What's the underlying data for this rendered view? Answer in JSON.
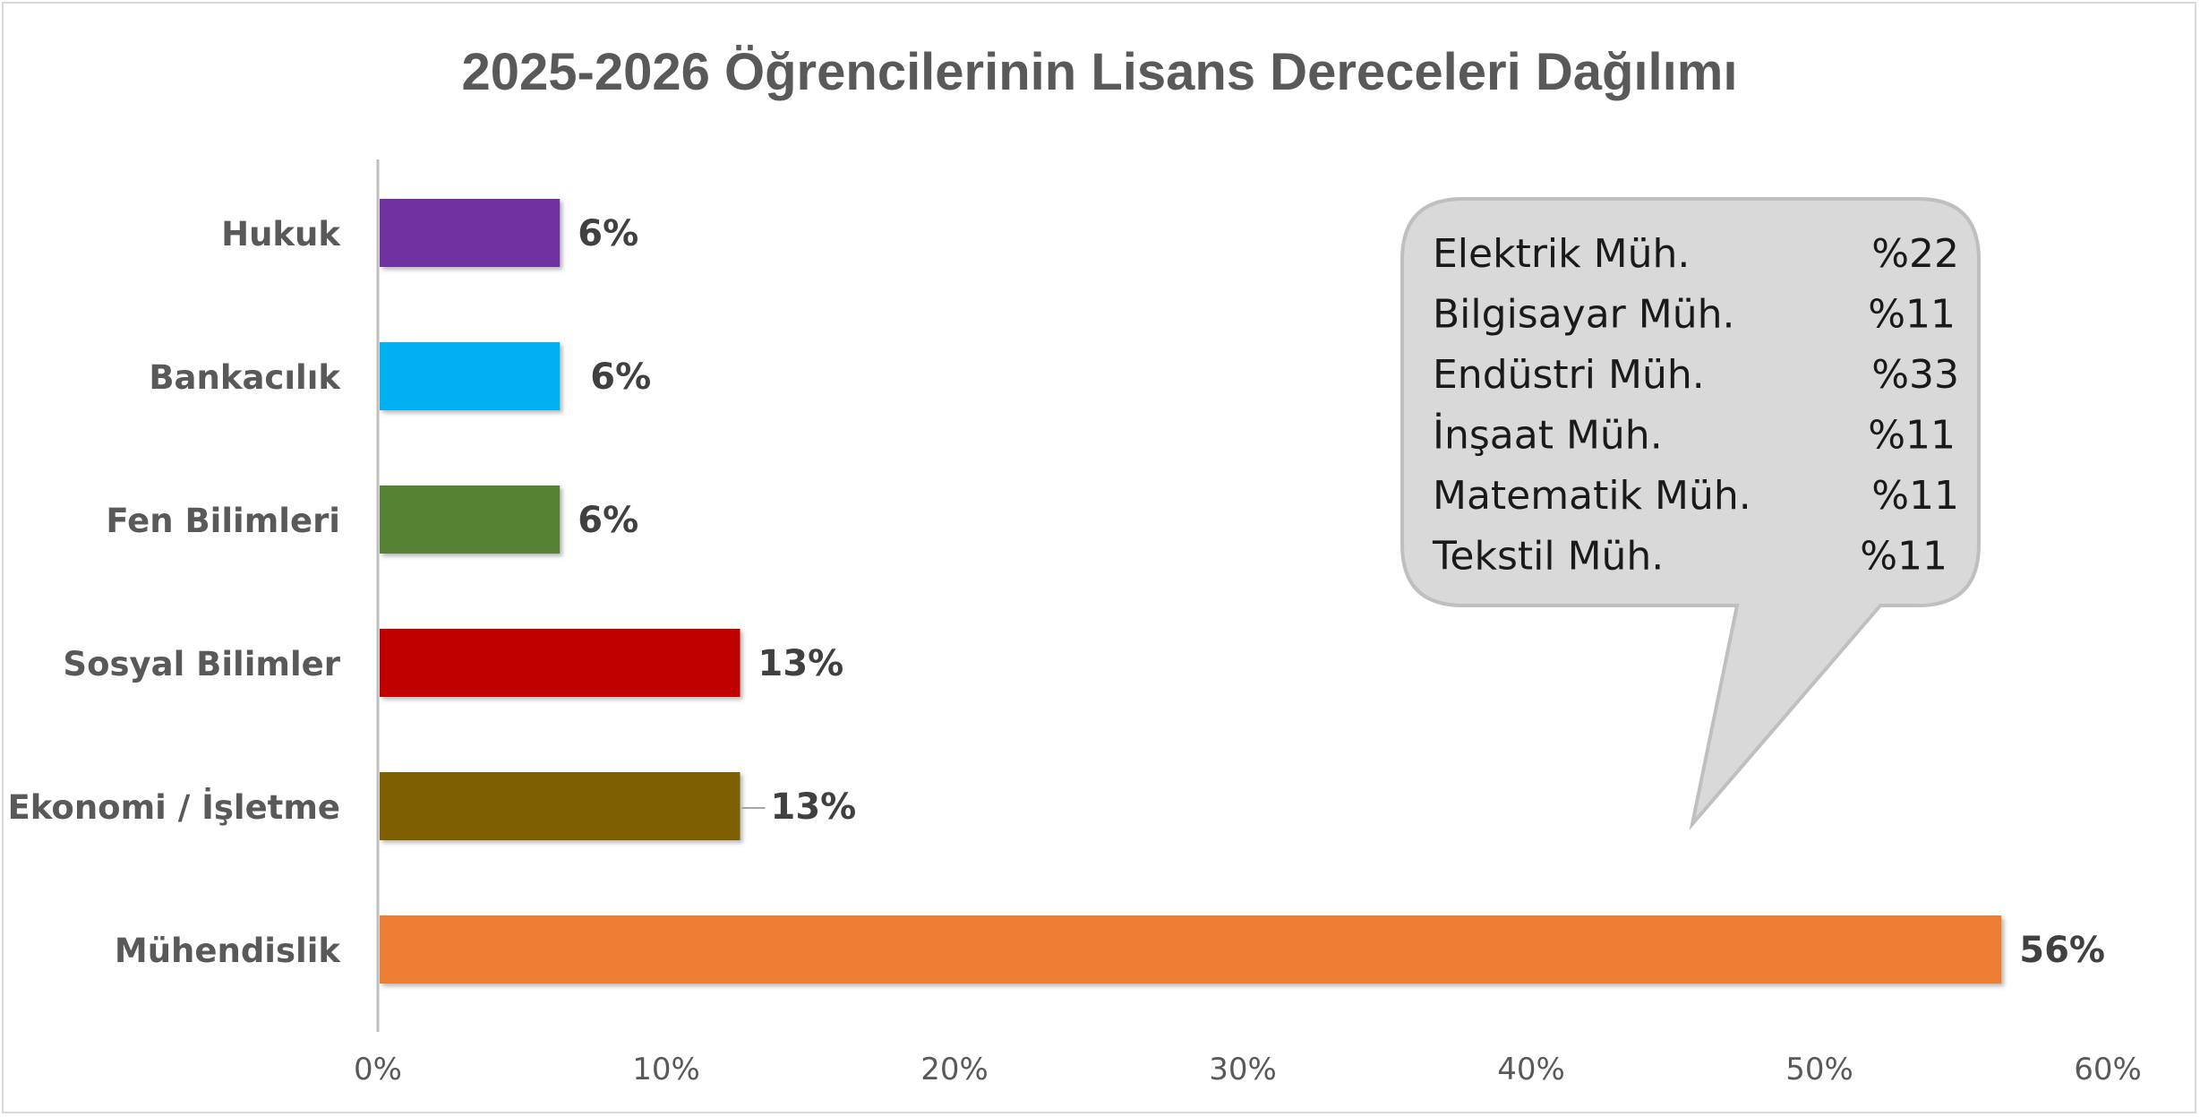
{
  "chart_data": {
    "type": "bar",
    "orientation": "horizontal",
    "title": "2025-2026 Öğrencilerinin Lisans Dereceleri Dağılımı",
    "categories": [
      "Hukuk",
      "Bankacılık",
      "Fen Bilimleri",
      "Sosyal Bilimler",
      "Ekonomi / İşletme",
      "Mühendislik"
    ],
    "values": [
      6.25,
      6.25,
      6.25,
      12.5,
      12.5,
      56.25
    ],
    "value_labels": [
      "6%",
      "6%",
      "6%",
      "13%",
      "13%",
      "56%"
    ],
    "colors": [
      "#7030a0",
      "#00b0f0",
      "#548235",
      "#c00000",
      "#7f6000",
      "#ed7d31"
    ],
    "xlim": [
      0,
      60
    ],
    "x_ticks": [
      0,
      10,
      20,
      30,
      40,
      50,
      60
    ],
    "x_tick_labels": [
      "0%",
      "10%",
      "20%",
      "30%",
      "40%",
      "50%",
      "60%"
    ],
    "xlabel": "",
    "ylabel": "",
    "grid": false,
    "legend": "none",
    "callout": {
      "points_to": "Mühendislik",
      "rows": [
        {
          "label": "Elektrik Müh.",
          "value": "%22"
        },
        {
          "label": "Bilgisayar Müh.",
          "value": "%11"
        },
        {
          "label": "Endüstri Müh.",
          "value": "%33"
        },
        {
          "label": "İnşaat Müh.",
          "value": "%11"
        },
        {
          "label": "Matematik Müh.",
          "value": "%11"
        },
        {
          "label": "Tekstil Müh.",
          "value": "%11"
        }
      ],
      "fill": "#d9d9d9",
      "stroke": "#bfbfbf"
    }
  }
}
